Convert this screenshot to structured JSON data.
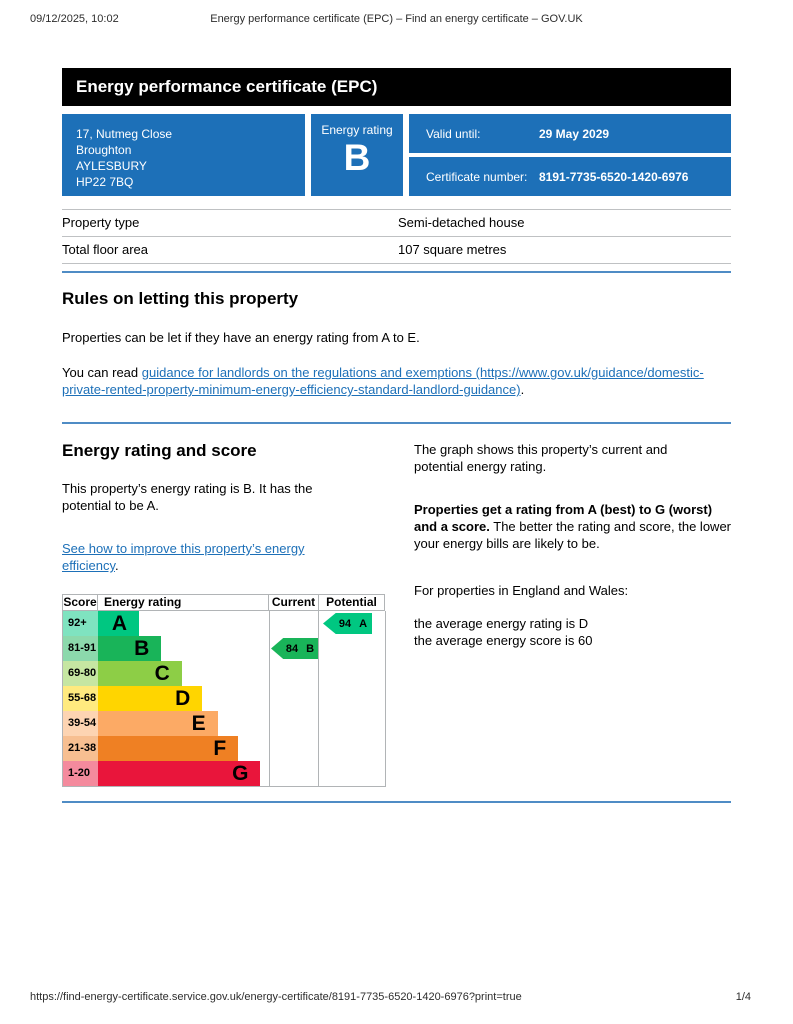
{
  "print_header": {
    "datetime": "09/12/2025, 10:02",
    "title": "Energy performance certificate (EPC) – Find an energy certificate – GOV.UK"
  },
  "banner": {
    "title": "Energy performance certificate (EPC)"
  },
  "summary": {
    "address_lines": [
      "17, Nutmeg Close",
      "Broughton",
      "AYLESBURY",
      "HP22 7BQ"
    ],
    "energy_rating_label": "Energy rating",
    "energy_rating": "B",
    "valid_until_label": "Valid until:",
    "valid_until_value": "29 May 2029",
    "certificate_number_label": "Certificate number:",
    "certificate_number_value": "8191-7735-6520-1420-6976"
  },
  "property_details": {
    "rows": [
      {
        "label": "Property type",
        "value": "Semi-detached house"
      },
      {
        "label": "Total floor area",
        "value": "107 square metres"
      }
    ]
  },
  "rules_section": {
    "heading": "Rules on letting this property",
    "paragraph1": "Properties can be let if they have an energy rating from A to E.",
    "paragraph2_prefix": "You can read ",
    "link_text": "guidance for landlords on the regulations and exemptions (https://www.gov.uk/guidance/domestic-private-rented-property-minimum-energy-efficiency-standard-landlord-guidance)",
    "paragraph2_suffix": "."
  },
  "rating_section": {
    "heading": "Energy rating and score",
    "paragraph1": "This property’s energy rating is B. It has the potential to be A.",
    "link_text": "See how to improve this property’s energy efficiency",
    "link_suffix": ".",
    "right": {
      "paragraph1": "The graph shows this property’s current and potential energy rating.",
      "paragraph2_bold": "Properties get a rating from A (best) to G (worst) and a score.",
      "paragraph2_rest": " The better the rating and score, the lower your energy bills are likely to be.",
      "paragraph3": "For properties in England and Wales:",
      "line1": "the average energy rating is D",
      "line2": "the average energy score is 60"
    }
  },
  "chart_data": {
    "type": "table",
    "title": "Energy rating and score chart",
    "headers": {
      "score": "Score",
      "energy_rating": "Energy rating",
      "current": "Current",
      "potential": "Potential"
    },
    "bands": [
      {
        "score_range": "92+",
        "letter": "A",
        "color": "#00c781",
        "tint": "#7fe3c0",
        "bar_width_pct": 24
      },
      {
        "score_range": "81-91",
        "letter": "B",
        "color": "#19b459",
        "tint": "#8cd9ac",
        "bar_width_pct": 37
      },
      {
        "score_range": "69-80",
        "letter": "C",
        "color": "#8dce46",
        "tint": "#c6e6a2",
        "bar_width_pct": 49
      },
      {
        "score_range": "55-68",
        "letter": "D",
        "color": "#ffd500",
        "tint": "#ffea7f",
        "bar_width_pct": 61
      },
      {
        "score_range": "39-54",
        "letter": "E",
        "color": "#fcaa65",
        "tint": "#fdd4b2",
        "bar_width_pct": 70
      },
      {
        "score_range": "21-38",
        "letter": "F",
        "color": "#ef8023",
        "tint": "#f7bf91",
        "bar_width_pct": 82
      },
      {
        "score_range": "1-20",
        "letter": "G",
        "color": "#e9153b",
        "tint": "#f48a9d",
        "bar_width_pct": 95
      }
    ],
    "current": {
      "score": "84",
      "letter": "B",
      "band_index": 1,
      "color": "#19b459"
    },
    "potential": {
      "score": "94",
      "letter": "A",
      "band_index": 0,
      "color": "#00c781"
    }
  },
  "print_footer": {
    "url": "https://find-energy-certificate.service.gov.uk/energy-certificate/8191-7735-6520-1420-6976?print=true",
    "page": "1/4"
  },
  "colors": {
    "govuk_blue": "#1d70b8",
    "section_rule_blue": "#4f8cc5",
    "border_grey": "#b1b4b6"
  }
}
